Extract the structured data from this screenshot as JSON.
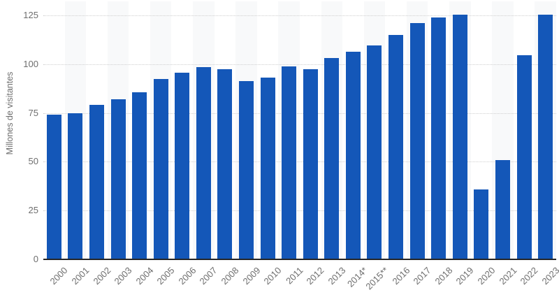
{
  "chart_data": {
    "type": "bar",
    "title": "",
    "categories": [
      "2000",
      "2001",
      "2002",
      "2003",
      "2004",
      "2005",
      "2006",
      "2007",
      "2008",
      "2009",
      "2010",
      "2011",
      "2012",
      "2013",
      "2014*",
      "2015**",
      "2016",
      "2017",
      "2018",
      "2019",
      "2020",
      "2021",
      "2022",
      "2023"
    ],
    "values": [
      74,
      75,
      79,
      82,
      85.5,
      92.5,
      95.5,
      98.5,
      97.5,
      91.5,
      93,
      99,
      97.5,
      103,
      106.5,
      109.5,
      115,
      121,
      124,
      125.5,
      36,
      51,
      104.5,
      125.5
    ],
    "xlabel": "",
    "ylabel": "Millones de visitantes",
    "ylim": [
      0,
      125
    ],
    "yticks": [
      0,
      25,
      50,
      75,
      100,
      125
    ],
    "grid": "horizontal-dotted",
    "legend_position": "none",
    "column_banding": "alternate-light-stripes",
    "colors": {
      "bar": "#1457b8",
      "stripe": "#f8f9fa",
      "gridline": "#cfcfcf",
      "axis_line": "#262626",
      "labels": "#6e6e6e",
      "background": "#ffffff"
    }
  }
}
